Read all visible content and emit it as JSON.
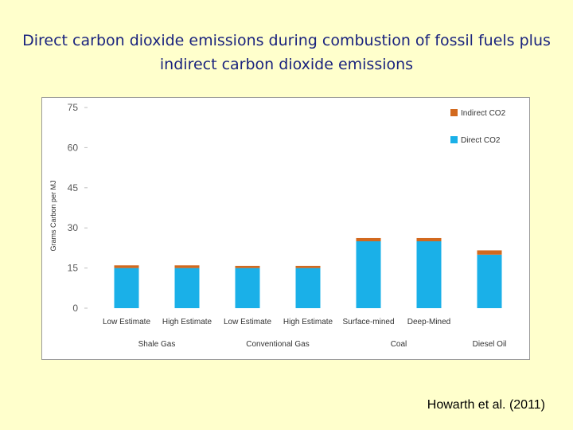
{
  "slide": {
    "title": "Direct carbon dioxide emissions during combustion of fossil fuels plus indirect carbon dioxide emissions",
    "citation": "Howarth et al. (2011)"
  },
  "chart_data": {
    "type": "bar",
    "stacked": true,
    "title": "",
    "ylabel": "Grams Carbon per MJ",
    "xlabel": "",
    "ylim": [
      0,
      75
    ],
    "yticks": [
      0,
      15,
      30,
      45,
      60,
      75
    ],
    "grid": false,
    "legend_position": "top-right",
    "categories": [
      "Low Estimate",
      "High Estimate",
      "Low Estimate",
      "High Estimate",
      "Surface-mined",
      "Deep-Mined",
      ""
    ],
    "groups": [
      {
        "label": "Shale Gas",
        "span": [
          0,
          1
        ]
      },
      {
        "label": "Conventional Gas",
        "span": [
          2,
          3
        ]
      },
      {
        "label": "Coal",
        "span": [
          4,
          5
        ]
      },
      {
        "label": "Diesel Oil",
        "span": [
          6,
          6
        ]
      }
    ],
    "series": [
      {
        "name": "Direct CO2",
        "color": "#1ab0e8",
        "values": [
          15,
          15,
          15,
          15,
          25,
          25,
          20
        ]
      },
      {
        "name": "Indirect CO2",
        "color": "#d2691e",
        "values": [
          1,
          1,
          0.8,
          0.8,
          1.2,
          1.2,
          1.6
        ]
      }
    ],
    "legend_order": [
      "Indirect CO2",
      "Direct CO2"
    ]
  }
}
